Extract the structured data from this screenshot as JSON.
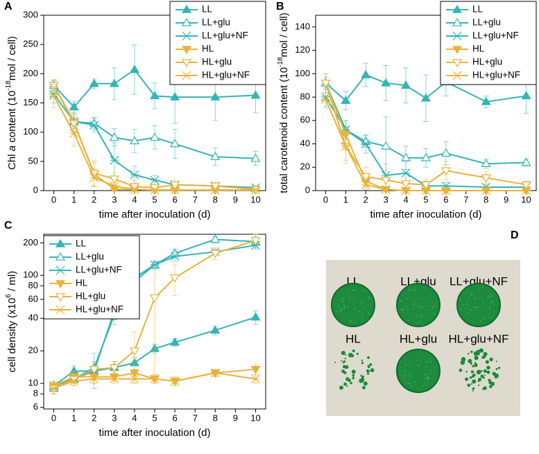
{
  "chart_data": [
    {
      "type": "line",
      "panel": "A",
      "ylabel_parts": [
        {
          "text": "Chl ",
          "style": "normal"
        },
        {
          "text": "a",
          "style": "italic"
        },
        {
          "text": " content (10",
          "style": "normal"
        },
        {
          "text": "-18",
          "style": "sup"
        },
        {
          "text": "mol / cell)",
          "style": "normal"
        }
      ],
      "xlabel": "time after inoculation (d)",
      "x": [
        0,
        1,
        2,
        3,
        4,
        5,
        6,
        8,
        10
      ],
      "xlim": [
        -0.5,
        10.5
      ],
      "xticks": [
        0,
        1,
        2,
        3,
        4,
        5,
        6,
        7,
        8,
        9,
        10
      ],
      "ylim": [
        0,
        300
      ],
      "yticks": [
        0,
        50,
        100,
        150,
        200,
        250,
        300
      ],
      "log": false,
      "legend": "upper right",
      "series": [
        {
          "name": "LL",
          "color": "#34b4b4",
          "marker": "tri-up-filled",
          "values": [
            180,
            143,
            183,
            183,
            207,
            162,
            160,
            160,
            163
          ],
          "errors": [
            8,
            10,
            8,
            27,
            42,
            22,
            45,
            40,
            30
          ]
        },
        {
          "name": "LL+glu",
          "color": "#34b4b4",
          "marker": "tri-up-open",
          "values": [
            180,
            118,
            115,
            91,
            85,
            91,
            80,
            58,
            55
          ],
          "errors": [
            8,
            8,
            10,
            15,
            20,
            20,
            25,
            15,
            12
          ]
        },
        {
          "name": "LL+glu+NF",
          "color": "#34b4b4",
          "marker": "star",
          "values": [
            165,
            118,
            112,
            52,
            27,
            18,
            10,
            8,
            5
          ],
          "errors": [
            15,
            12,
            12,
            30,
            15,
            8,
            5,
            4,
            3
          ]
        },
        {
          "name": "HL",
          "color": "#e8b23a",
          "marker": "tri-down-filled",
          "values": [
            180,
            117,
            28,
            3,
            2,
            1,
            1,
            1,
            1
          ],
          "errors": [
            10,
            15,
            20,
            5,
            3,
            2,
            2,
            2,
            2
          ]
        },
        {
          "name": "HL+glu",
          "color": "#e8b23a",
          "marker": "tri-down-open",
          "values": [
            180,
            115,
            30,
            20,
            7,
            5,
            10,
            8,
            2
          ],
          "errors": [
            10,
            15,
            22,
            10,
            10,
            10,
            8,
            6,
            3
          ]
        },
        {
          "name": "HL+glu+NF",
          "color": "#e8b23a",
          "marker": "star",
          "values": [
            162,
            98,
            22,
            8,
            2,
            1,
            1,
            1,
            1
          ],
          "errors": [
            20,
            22,
            15,
            6,
            3,
            2,
            2,
            2,
            2
          ]
        }
      ]
    },
    {
      "type": "line",
      "panel": "B",
      "ylabel_parts": [
        {
          "text": "total carotenoid content (10",
          "style": "normal"
        },
        {
          "text": "-18",
          "style": "sup"
        },
        {
          "text": "mol / cell)",
          "style": "normal"
        }
      ],
      "xlabel": "time after inoculation (d)",
      "x": [
        0,
        1,
        2,
        3,
        4,
        5,
        6,
        8,
        10
      ],
      "xlim": [
        -0.5,
        10.5
      ],
      "xticks": [
        0,
        1,
        2,
        3,
        4,
        5,
        6,
        7,
        8,
        9,
        10
      ],
      "ylim": [
        0,
        150
      ],
      "yticks": [
        0,
        20,
        40,
        60,
        80,
        100,
        120,
        140
      ],
      "log": false,
      "legend": "upper right",
      "series": [
        {
          "name": "LL",
          "color": "#34b4b4",
          "marker": "tri-up-filled",
          "values": [
            92,
            77,
            99,
            92,
            90,
            79,
            93,
            76,
            81
          ],
          "errors": [
            8,
            8,
            10,
            15,
            15,
            20,
            12,
            5,
            15
          ]
        },
        {
          "name": "LL+glu",
          "color": "#34b4b4",
          "marker": "tri-up-open",
          "values": [
            92,
            52,
            42,
            38,
            28,
            28,
            32,
            23,
            24
          ],
          "errors": [
            5,
            8,
            5,
            25,
            10,
            8,
            10,
            4,
            3
          ]
        },
        {
          "name": "LL+glu+NF",
          "color": "#34b4b4",
          "marker": "star",
          "values": [
            80,
            52,
            40,
            13,
            15,
            4,
            4,
            3,
            3
          ],
          "errors": [
            8,
            8,
            8,
            10,
            10,
            4,
            3,
            2,
            2
          ]
        },
        {
          "name": "HL",
          "color": "#e8b23a",
          "marker": "tri-down-filled",
          "values": [
            92,
            48,
            8,
            1,
            0,
            0,
            0,
            0,
            0
          ],
          "errors": [
            8,
            10,
            5,
            2,
            1,
            1,
            1,
            1,
            1
          ]
        },
        {
          "name": "HL+glu",
          "color": "#e8b23a",
          "marker": "tri-down-open",
          "values": [
            92,
            38,
            12,
            9,
            6,
            5,
            17,
            11,
            5
          ],
          "errors": [
            8,
            15,
            8,
            8,
            5,
            5,
            8,
            5,
            3
          ]
        },
        {
          "name": "HL+glu+NF",
          "color": "#e8b23a",
          "marker": "star",
          "values": [
            78,
            38,
            5,
            1,
            0,
            0,
            0,
            0,
            0
          ],
          "errors": [
            8,
            12,
            4,
            2,
            1,
            1,
            1,
            1,
            1
          ]
        }
      ]
    },
    {
      "type": "line",
      "panel": "C",
      "ylabel_parts": [
        {
          "text": "cell density (x10",
          "style": "normal"
        },
        {
          "text": "6",
          "style": "sup"
        },
        {
          "text": " / ml)",
          "style": "normal"
        }
      ],
      "xlabel": "time after inoculation (d)",
      "x": [
        0,
        1,
        2,
        3,
        4,
        5,
        6,
        8,
        10
      ],
      "xlim": [
        -0.5,
        10.5
      ],
      "xticks": [
        0,
        1,
        2,
        3,
        4,
        5,
        6,
        7,
        8,
        9,
        10
      ],
      "ylim": [
        5.8,
        240
      ],
      "yticks": [
        6,
        8,
        10,
        20,
        40,
        60,
        80,
        100,
        200
      ],
      "log": true,
      "legend": "upper left",
      "series": [
        {
          "name": "LL",
          "color": "#34b4b4",
          "marker": "tri-up-filled",
          "values": [
            9.5,
            13,
            13,
            14,
            15.5,
            21,
            24,
            31,
            41
          ],
          "errors": [
            1,
            1.5,
            1.5,
            2,
            2,
            2,
            2,
            3,
            6
          ]
        },
        {
          "name": "LL+glu",
          "color": "#34b4b4",
          "marker": "tri-up-open",
          "values": [
            9,
            11,
            14,
            43,
            95,
            125,
            160,
            215,
            205
          ],
          "errors": [
            1,
            1,
            5,
            8,
            12,
            10,
            15,
            15,
            25
          ]
        },
        {
          "name": "LL+glu+NF",
          "color": "#34b4b4",
          "marker": "star",
          "values": [
            9.5,
            11,
            13,
            47,
            88,
            125,
            150,
            165,
            190
          ],
          "errors": [
            1,
            1,
            3,
            8,
            10,
            10,
            15,
            10,
            15
          ]
        },
        {
          "name": "HL",
          "color": "#e8b23a",
          "marker": "tri-down-filled",
          "values": [
            9.5,
            11.5,
            11.5,
            11.5,
            12.5,
            11,
            10.5,
            12.5,
            13.5
          ],
          "errors": [
            1,
            1.5,
            1.5,
            1,
            1,
            1,
            1,
            1,
            1.5
          ]
        },
        {
          "name": "HL+glu",
          "color": "#e8b23a",
          "marker": "tri-down-open",
          "values": [
            9,
            11,
            13.5,
            14,
            20,
            62,
            95,
            160,
            210
          ],
          "errors": [
            1,
            1.5,
            2,
            2,
            10,
            50,
            30,
            20,
            30
          ]
        },
        {
          "name": "HL+glu+NF",
          "color": "#e8b23a",
          "marker": "star",
          "values": [
            9,
            10.5,
            11,
            11,
            11,
            11,
            10.5,
            12.5,
            11
          ],
          "errors": [
            1,
            1,
            1,
            1,
            1,
            1,
            1,
            1,
            1
          ]
        }
      ]
    }
  ],
  "photo": {
    "panel": "D",
    "labels": [
      "LL",
      "LL+glu",
      "LL+glu+NF",
      "HL",
      "HL+glu",
      "HL+glu+NF"
    ]
  }
}
